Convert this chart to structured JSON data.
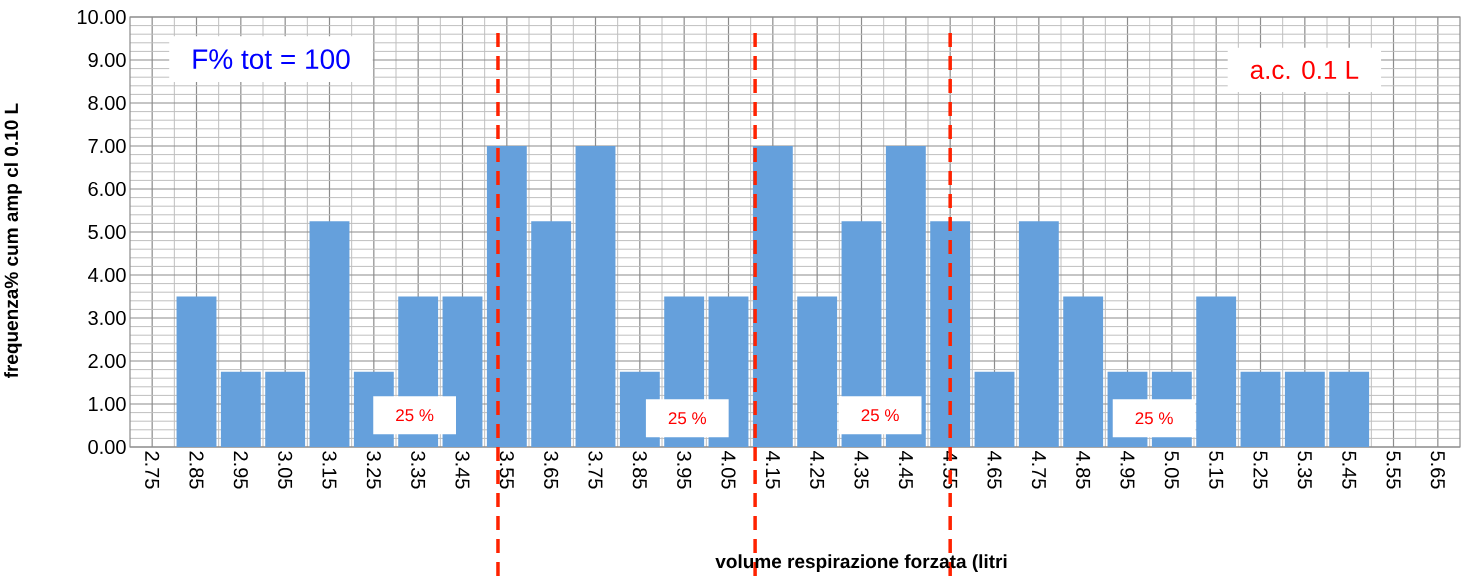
{
  "chart_data": {
    "type": "bar",
    "xlabel": "volume respirazione forzata (litri",
    "ylabel": "frequenza% cum  amp cl 0.10 L",
    "x": [
      2.75,
      2.85,
      2.95,
      3.05,
      3.15,
      3.25,
      3.35,
      3.45,
      3.55,
      3.65,
      3.75,
      3.85,
      3.95,
      4.05,
      4.15,
      4.25,
      4.35,
      4.45,
      4.55,
      4.65,
      4.75,
      4.85,
      4.95,
      5.05,
      5.15,
      5.25,
      5.35,
      5.45,
      5.55,
      5.65
    ],
    "values": [
      0,
      3.5,
      1.75,
      1.75,
      5.25,
      1.75,
      3.5,
      3.5,
      7,
      5.25,
      7,
      1.75,
      3.5,
      3.5,
      7,
      3.5,
      5.25,
      7,
      5.25,
      1.75,
      5.25,
      3.5,
      1.75,
      1.75,
      3.5,
      1.75,
      1.75,
      1.75,
      0,
      0
    ],
    "color": "#65a0dc",
    "xlim": [
      2.7,
      5.7
    ],
    "xticks": [
      2.75,
      2.85,
      2.95,
      3.05,
      3.15,
      3.25,
      3.35,
      3.45,
      3.55,
      3.65,
      3.75,
      3.85,
      3.95,
      4.05,
      4.15,
      4.25,
      4.35,
      4.45,
      4.55,
      4.65,
      4.75,
      4.85,
      4.95,
      5.05,
      5.15,
      5.25,
      5.35,
      5.45,
      5.55,
      5.65
    ],
    "ylim": [
      0,
      10
    ],
    "yticks": [
      {
        "value": 0,
        "label": "0.00"
      },
      {
        "value": 1,
        "label": "1.00"
      },
      {
        "value": 2,
        "label": "2.00"
      },
      {
        "value": 3,
        "label": "3.00"
      },
      {
        "value": 4,
        "label": "4.00"
      },
      {
        "value": 5,
        "label": "5.00"
      },
      {
        "value": 6,
        "label": "6.00"
      },
      {
        "value": 7,
        "label": "7.00"
      },
      {
        "value": 8,
        "label": "8.00"
      },
      {
        "value": 9,
        "label": "9.00"
      },
      {
        "value": 10,
        "label": "10.00"
      }
    ],
    "grid": true,
    "ref_lines": [
      {
        "axis": "x",
        "value": 3.53,
        "color": "#ff2200",
        "line_style": "dashed"
      },
      {
        "axis": "x",
        "value": 4.11,
        "color": "#ff2200",
        "line_style": "dashed"
      },
      {
        "axis": "x",
        "value": 4.55,
        "color": "#ff2200",
        "line_style": "dashed"
      }
    ],
    "annotations": [
      "F% tot = 100",
      "a.c. 0.1 L",
      "25 %",
      "25 %",
      "25 %",
      "25 %"
    ]
  }
}
